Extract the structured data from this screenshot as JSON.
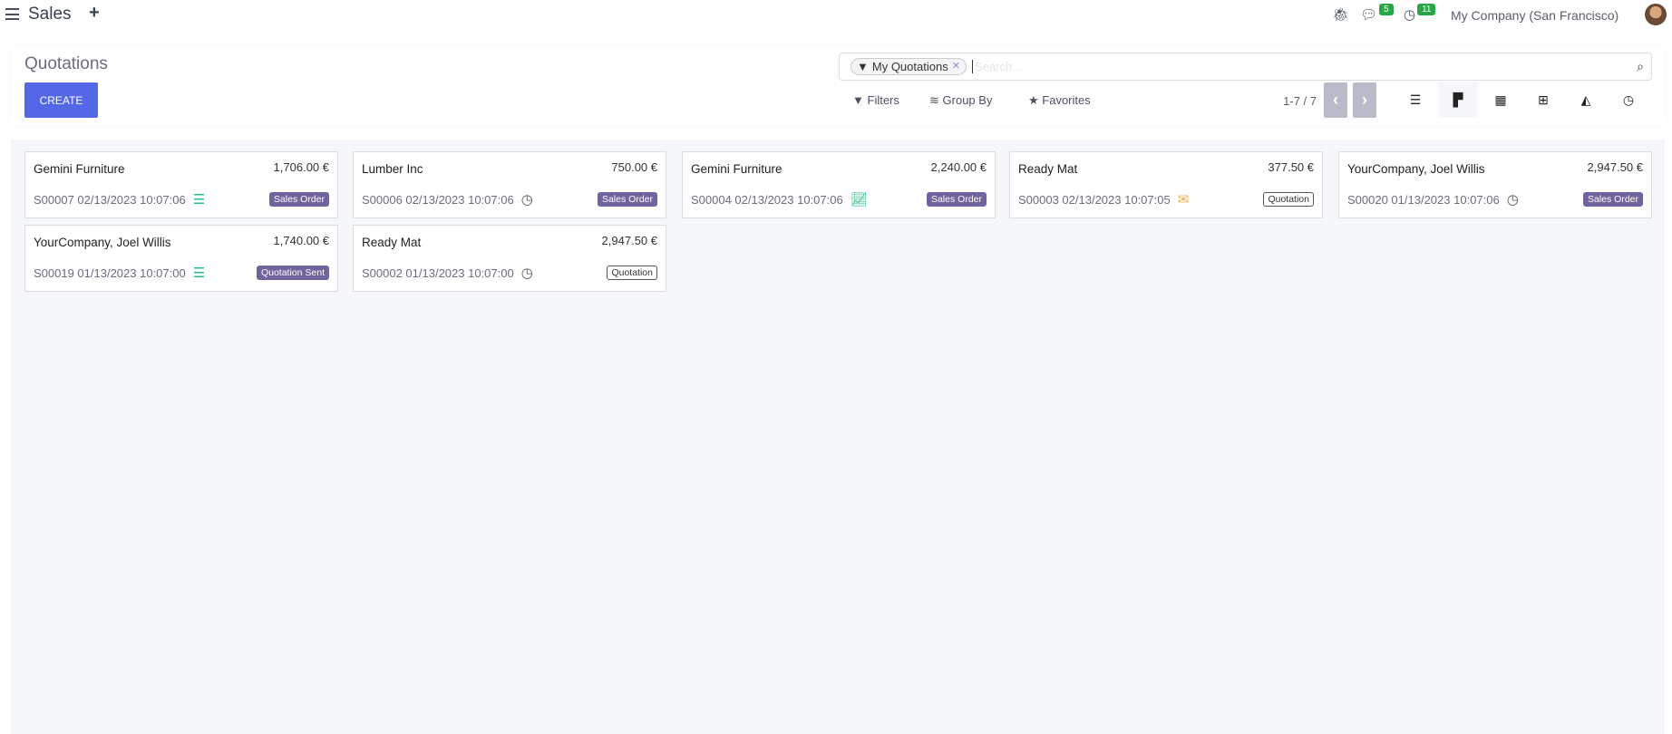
{
  "navbar": {
    "app_title": "Sales",
    "new_icon": "plus-icon",
    "messages_count": "5",
    "activities_count": "11",
    "company": "My Company (San Francisco)"
  },
  "control": {
    "title": "Quotations",
    "create_label": "CREATE",
    "facet": "My Quotations",
    "search_placeholder": "Search...",
    "filters": "Filters",
    "group_by": "Group By",
    "favorites": "Favorites",
    "pager": "1-7 / 7"
  },
  "views": [
    "list-view",
    "kanban-view",
    "calendar-view",
    "pivot-view",
    "graph-view",
    "activity-view"
  ],
  "colors": {
    "accent": "#5468e7",
    "badge": "#71639e",
    "activity_green": "#28c088",
    "activity_orange": "#f0ad4e"
  },
  "cards": [
    {
      "customer": "Gemini Furniture",
      "amount": "1,706.00 €",
      "ref": "S00007 02/13/2023 10:07:06",
      "activity": "list-icon",
      "status": "Sales Order",
      "style": "filled"
    },
    {
      "customer": "Lumber Inc",
      "amount": "750.00 €",
      "ref": "S00006 02/13/2023 10:07:06",
      "activity": "clock-icon",
      "status": "Sales Order",
      "style": "filled"
    },
    {
      "customer": "Gemini Furniture",
      "amount": "2,240.00 €",
      "ref": "S00004 02/13/2023 10:07:06",
      "activity": "chart-line-icon",
      "status": "Sales Order",
      "style": "filled"
    },
    {
      "customer": "Ready Mat",
      "amount": "377.50 €",
      "ref": "S00003 02/13/2023 10:07:05",
      "activity": "envelope-icon",
      "status": "Quotation",
      "style": "outline"
    },
    {
      "customer": "YourCompany, Joel Willis",
      "amount": "2,947.50 €",
      "ref": "S00020 01/13/2023 10:07:06",
      "activity": "clock-icon",
      "status": "Sales Order",
      "style": "filled"
    },
    {
      "customer": "YourCompany, Joel Willis",
      "amount": "1,740.00 €",
      "ref": "S00019 01/13/2023 10:07:00",
      "activity": "list-icon",
      "status": "Quotation Sent",
      "style": "filled"
    },
    {
      "customer": "Ready Mat",
      "amount": "2,947.50 €",
      "ref": "S00002 01/13/2023 10:07:00",
      "activity": "clock-icon",
      "status": "Quotation",
      "style": "outline"
    }
  ]
}
